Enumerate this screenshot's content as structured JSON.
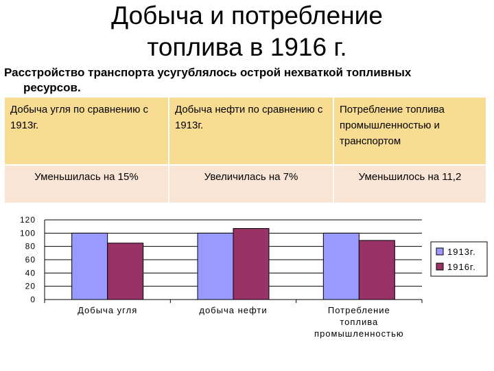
{
  "page": {
    "title_line1": "Добыча и потребление",
    "title_line2": "топлива в 1916 г.",
    "subtitle_line1": "Расстройство транспорта усугублялось острой нехваткой топливных",
    "subtitle_line2": "ресурсов."
  },
  "table": {
    "headers": [
      "Добыча угля по сравнению с 1913г.",
      "Добыча нефти по сравнению с 1913г.",
      "Потребление топлива промышленностью и транспортом"
    ],
    "values": [
      "Уменьшилась на 15%",
      "Увеличилась на 7%",
      "Уменьшилось на 11,2"
    ]
  },
  "chart_data": {
    "type": "bar",
    "title": "",
    "xlabel": "",
    "ylabel": "",
    "categories": [
      "Добыча угля",
      "добыча нефти",
      "Потребление топлива промышленностью"
    ],
    "series": [
      {
        "name": "1913г.",
        "values": [
          100,
          100,
          100
        ],
        "color": "#9999ff"
      },
      {
        "name": "1916г.",
        "values": [
          85,
          107,
          89
        ],
        "color": "#993366"
      }
    ],
    "ylim": [
      0,
      120
    ],
    "yticks": [
      0,
      20,
      40,
      60,
      80,
      100,
      120
    ],
    "grid": true,
    "legend": "right"
  },
  "colors": {
    "table_header_bg": "#f8dc92",
    "table_value_bg": "#f9e5d6"
  }
}
